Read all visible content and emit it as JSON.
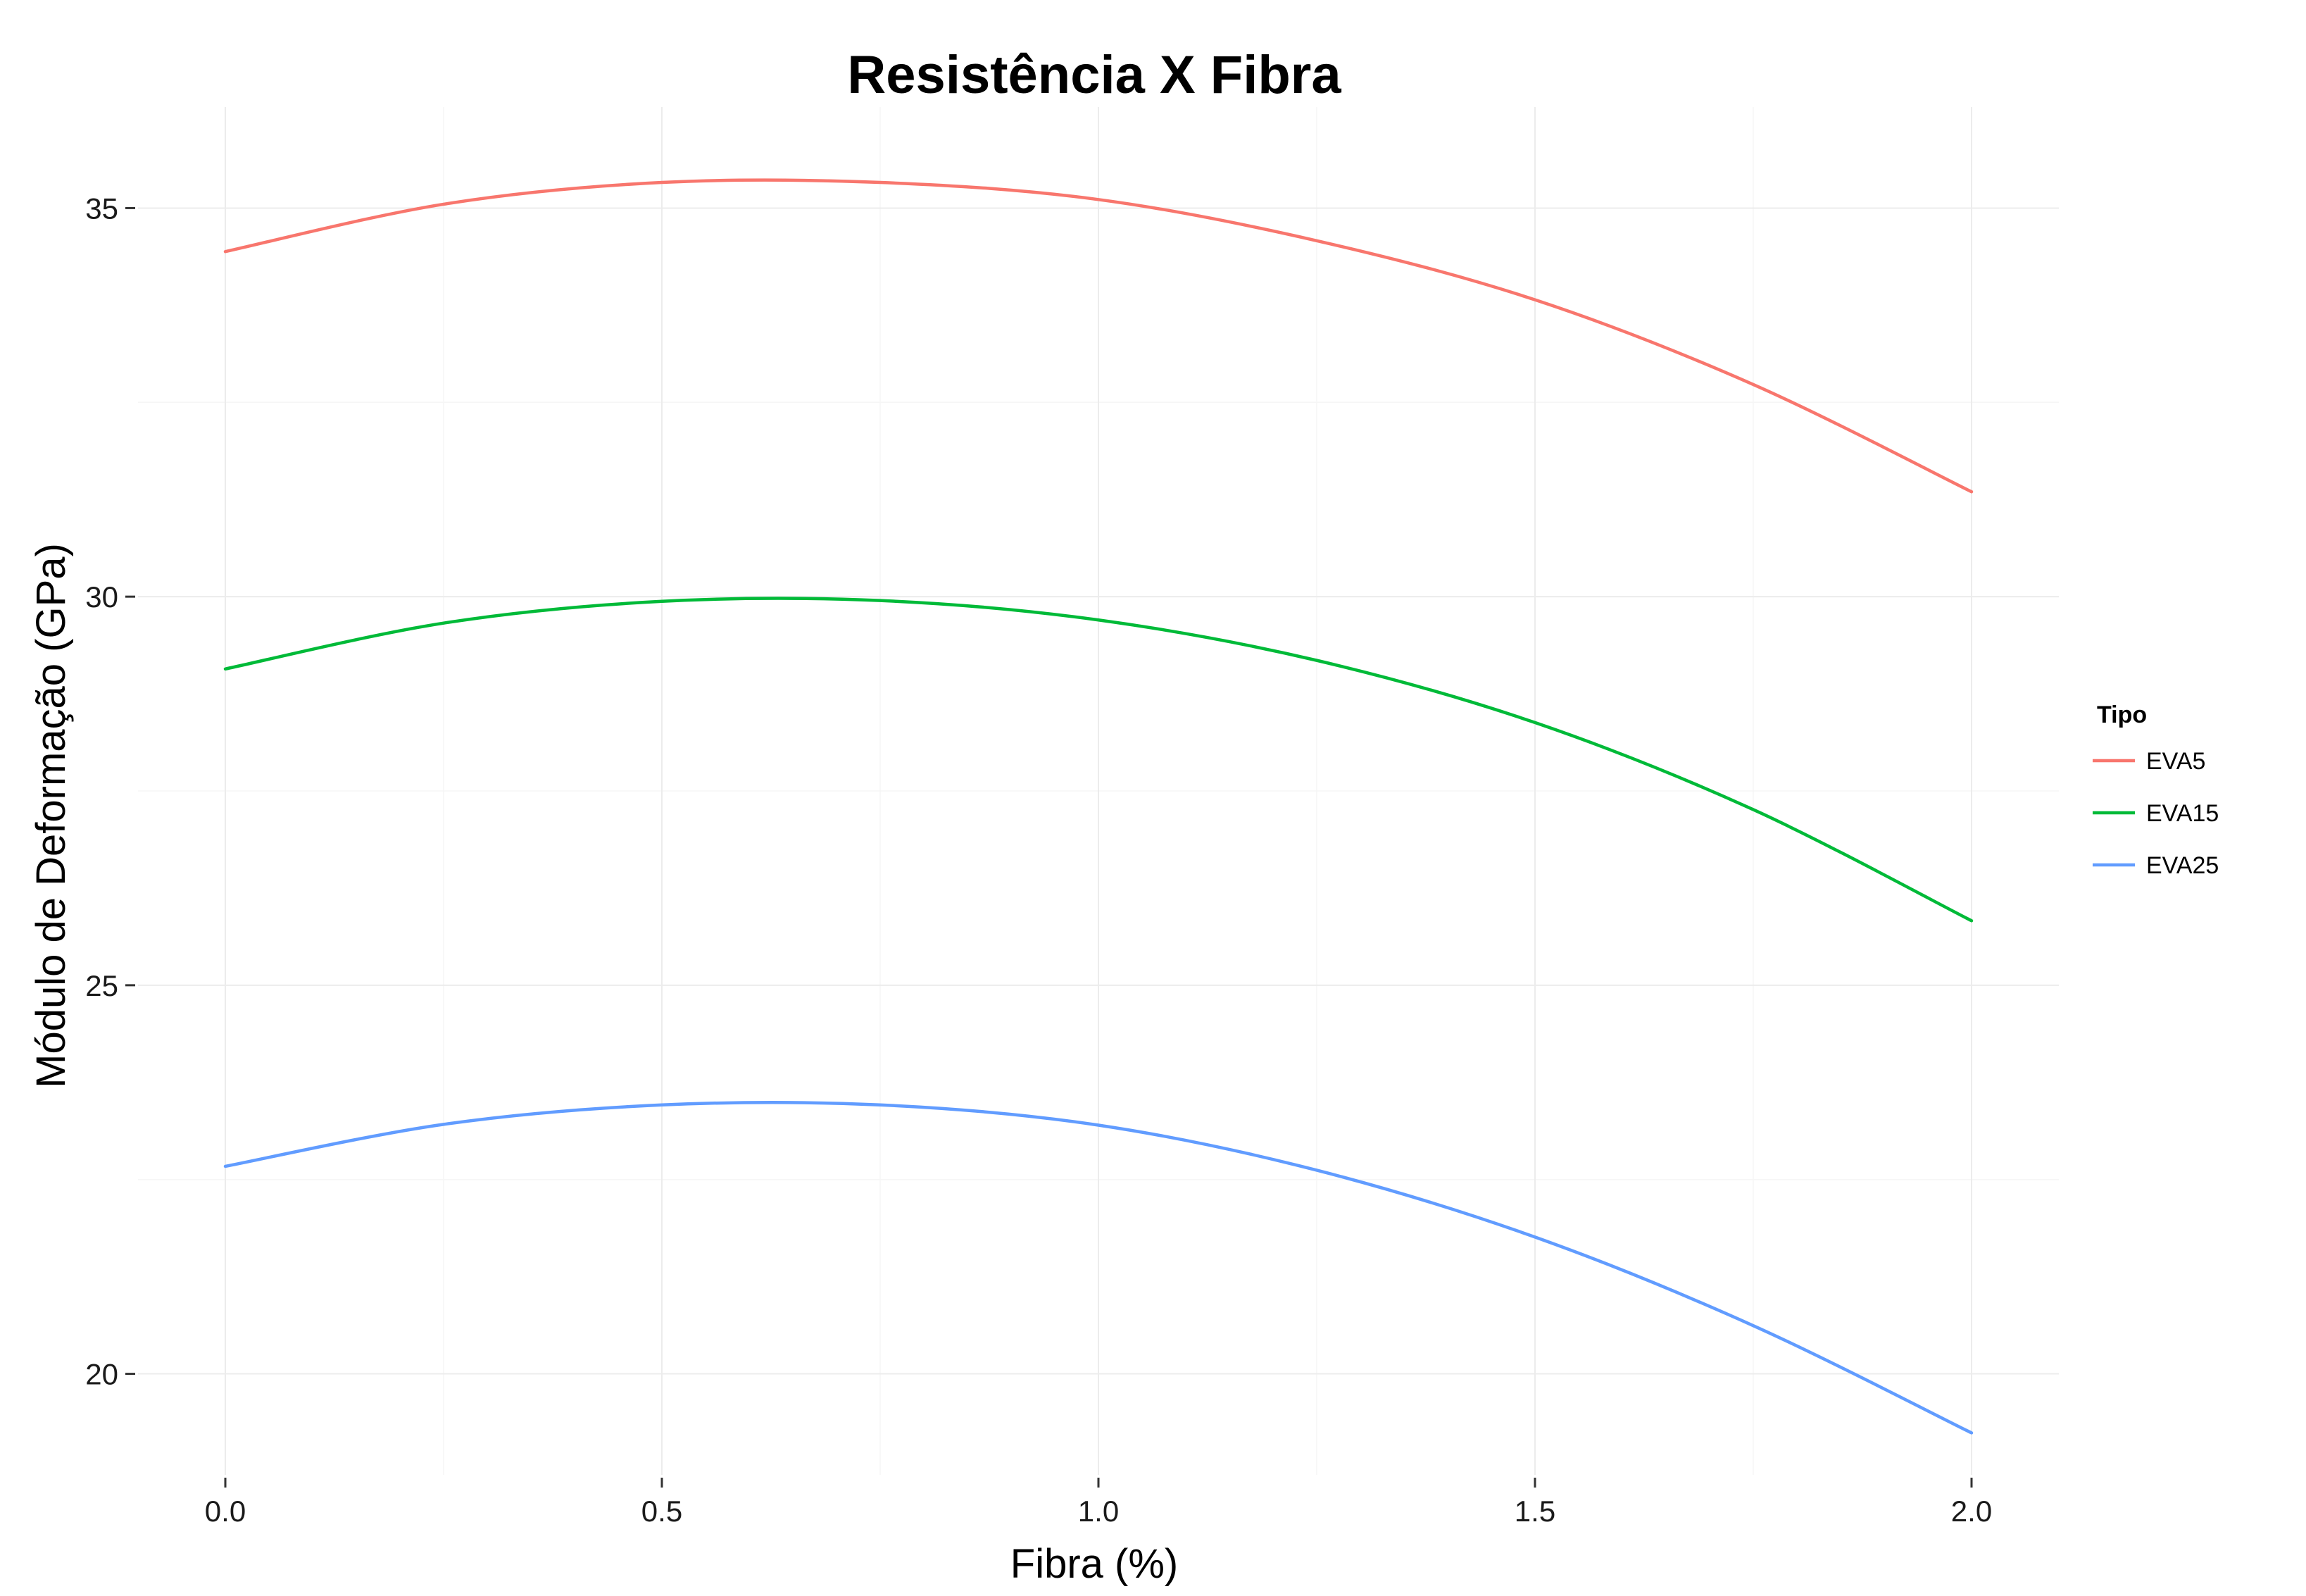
{
  "chart_data": {
    "type": "line",
    "title": "Resistência X Fibra",
    "xlabel": "Fibra (%)",
    "ylabel": "Módulo de Deformação (GPa)",
    "xlim": [
      -0.1,
      2.1
    ],
    "ylim": [
      18.7,
      36.3
    ],
    "x_ticks": [
      0.0,
      0.5,
      1.0,
      1.5,
      2.0
    ],
    "x_tick_labels": [
      "0.0",
      "0.5",
      "1.0",
      "1.5",
      "2.0"
    ],
    "y_ticks": [
      20,
      25,
      30,
      35
    ],
    "y_tick_labels": [
      "20",
      "25",
      "30",
      "35"
    ],
    "grid": true,
    "legend": {
      "title": "Tipo",
      "position": "right"
    },
    "x": [
      0.0,
      0.25,
      0.5,
      0.75,
      1.0,
      1.25,
      1.5,
      1.75,
      2.0
    ],
    "series": [
      {
        "name": "EVA5",
        "color": "#F8766D",
        "values": [
          34.44,
          35.05,
          35.33,
          35.33,
          35.11,
          34.58,
          33.82,
          32.73,
          31.35
        ]
      },
      {
        "name": "EVA15",
        "color": "#00BA38",
        "values": [
          29.07,
          29.66,
          29.94,
          29.95,
          29.7,
          29.18,
          28.38,
          27.26,
          25.83
        ]
      },
      {
        "name": "EVA25",
        "color": "#619CFF",
        "values": [
          22.67,
          23.21,
          23.46,
          23.46,
          23.2,
          22.62,
          21.76,
          20.62,
          19.24
        ]
      }
    ]
  }
}
